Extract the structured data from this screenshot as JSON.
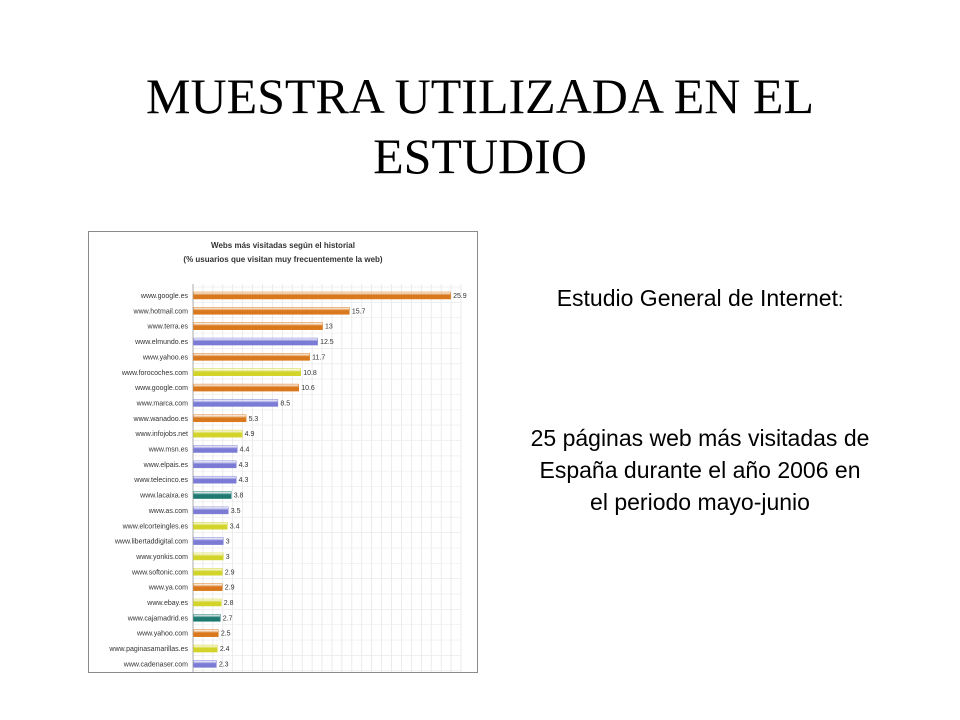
{
  "slide": {
    "title": "MUESTRA UTILIZADA EN EL ESTUDIO",
    "source_label": "Estudio General de Internet",
    "source_colon": ":",
    "description": "25 páginas web más visitadas de España durante el año 2006 en el periodo mayo-junio"
  },
  "chart_data": {
    "type": "bar",
    "orientation": "horizontal",
    "title": "Webs más visitadas según el historial",
    "subtitle": "(% usuarios que visitan muy frecuentemente la web)",
    "xlim": [
      0,
      27
    ],
    "grid": true,
    "legend": "none",
    "categories": [
      "www.google.es",
      "www.hotmail.com",
      "www.terra.es",
      "www.elmundo.es",
      "www.yahoo.es",
      "www.forocoches.com",
      "www.google.com",
      "www.marca.com",
      "www.wanadoo.es",
      "www.infojobs.net",
      "www.msn.es",
      "www.elpais.es",
      "www.telecinco.es",
      "www.lacaixa.es",
      "www.as.com",
      "www.elcorteingles.es",
      "www.libertaddigital.com",
      "www.yonkis.com",
      "www.softonic.com",
      "www.ya.com",
      "www.ebay.es",
      "www.cajamadrid.es",
      "www.yahoo.com",
      "www.paginasamarillas.es",
      "www.cadenaser.com"
    ],
    "values": [
      25.9,
      15.7,
      13,
      12.5,
      11.7,
      10.8,
      10.6,
      8.5,
      5.3,
      4.9,
      4.4,
      4.3,
      4.3,
      3.8,
      3.5,
      3.4,
      3,
      3,
      2.9,
      2.9,
      2.8,
      2.7,
      2.5,
      2.4,
      2.3
    ],
    "value_labels": [
      "25.9",
      "15.7",
      "13",
      "12.5",
      "11.7",
      "10.8",
      "10.6",
      "8.5",
      "5.3",
      "4.9",
      "4.4",
      "4.3",
      "4.3",
      "3.8",
      "3.5",
      "3.4",
      "3",
      "3",
      "2.9",
      "2.9",
      "2.8",
      "2.7",
      "2.5",
      "2.4",
      "2.3"
    ],
    "bar_colors": [
      "#d9781c",
      "#d9781c",
      "#d9781c",
      "#7b7bd6",
      "#d9781c",
      "#d2d42a",
      "#d9781c",
      "#7b7bd6",
      "#d9781c",
      "#d2d42a",
      "#7b7bd6",
      "#7b7bd6",
      "#7b7bd6",
      "#1e7a70",
      "#7b7bd6",
      "#d2d42a",
      "#7b7bd6",
      "#d2d42a",
      "#d2d42a",
      "#d9781c",
      "#d2d42a",
      "#1e7a70",
      "#d9781c",
      "#d2d42a",
      "#7b7bd6"
    ]
  }
}
